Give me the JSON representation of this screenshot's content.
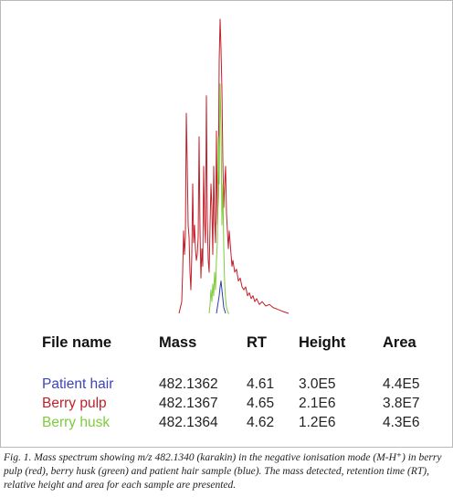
{
  "chart_data": {
    "type": "line",
    "title": "",
    "xlabel": "",
    "ylabel": "",
    "series": [
      {
        "color": "#c0202a",
        "x": [
          195,
          198,
          199,
          200,
          201,
          202,
          203,
          204,
          205,
          206,
          207,
          208,
          209,
          210,
          211,
          212,
          213,
          214,
          215,
          216,
          217,
          218,
          219,
          220,
          221,
          222,
          223,
          224,
          225,
          226,
          227,
          228,
          229,
          230,
          231,
          232,
          233,
          234,
          235,
          236,
          237,
          238,
          239,
          240,
          241,
          242,
          243,
          244,
          245,
          246,
          247,
          248,
          249,
          250,
          251,
          252,
          253,
          254,
          256,
          258,
          260,
          262,
          264,
          266,
          268,
          270,
          272,
          274,
          276,
          278,
          280,
          283,
          286,
          290,
          294,
          298,
          302,
          306,
          310,
          315
        ],
        "y": [
          0.0,
          0.04,
          0.14,
          0.28,
          0.2,
          0.26,
          0.68,
          0.51,
          0.3,
          0.26,
          0.14,
          0.08,
          0.2,
          0.44,
          0.24,
          0.3,
          0.22,
          0.18,
          0.2,
          0.26,
          0.6,
          0.28,
          0.12,
          0.22,
          0.16,
          0.5,
          0.31,
          0.24,
          0.74,
          0.32,
          0.18,
          0.14,
          0.3,
          0.44,
          0.36,
          0.2,
          0.5,
          0.32,
          0.24,
          0.62,
          0.3,
          0.4,
          0.86,
          1.0,
          0.9,
          0.76,
          0.52,
          0.36,
          0.44,
          0.5,
          0.34,
          0.28,
          0.22,
          0.28,
          0.24,
          0.2,
          0.16,
          0.18,
          0.14,
          0.15,
          0.11,
          0.12,
          0.09,
          0.08,
          0.09,
          0.06,
          0.07,
          0.05,
          0.06,
          0.04,
          0.05,
          0.03,
          0.04,
          0.025,
          0.03,
          0.02,
          0.015,
          0.01,
          0.005,
          0.0
        ]
      },
      {
        "color": "#7fcc3a",
        "x": [
          228,
          229,
          230,
          231,
          232,
          233,
          234,
          235,
          236,
          237,
          238,
          239,
          240,
          241,
          242,
          243,
          244,
          245,
          246,
          247,
          248,
          249,
          250
        ],
        "y": [
          0.0,
          0.03,
          0.08,
          0.04,
          0.1,
          0.06,
          0.14,
          0.08,
          0.18,
          0.24,
          0.6,
          0.44,
          0.78,
          0.64,
          0.3,
          0.44,
          0.22,
          0.1,
          0.05,
          0.02,
          0.01,
          0.0,
          0.0
        ]
      },
      {
        "color": "#2e3cb0",
        "x": [
          236,
          237,
          238,
          239,
          240,
          241,
          242,
          243,
          244,
          245,
          246
        ],
        "y": [
          0.0,
          0.02,
          0.04,
          0.06,
          0.09,
          0.11,
          0.08,
          0.05,
          0.02,
          0.01,
          0.0
        ]
      }
    ]
  },
  "table": {
    "headers": [
      "File name",
      "Mass",
      "RT",
      "Height",
      "Area"
    ],
    "rows": [
      {
        "name": "Patient hair",
        "mass": "482.1362",
        "rt": "4.61",
        "height": "3.0E5",
        "area": "4.4E5",
        "color": "#3d44b8"
      },
      {
        "name": "Berry pulp",
        "mass": "482.1367",
        "rt": "4.65",
        "height": "2.1E6",
        "area": "3.8E7",
        "color": "#c0202a"
      },
      {
        "name": "Berry husk",
        "mass": "482.1364",
        "rt": "4.62",
        "height": "1.2E6",
        "area": "4.3E6",
        "color": "#7fcc3a"
      }
    ]
  },
  "caption": {
    "text": "Fig. 1. Mass spectrum showing m/z 482.1340 (karakin) in the negative ionisation mode (M-H⁺) in berry pulp (red), berry husk (green) and patient hair sample (blue). The mass detected, retention time (RT), relative height and area for each sample are presented."
  }
}
